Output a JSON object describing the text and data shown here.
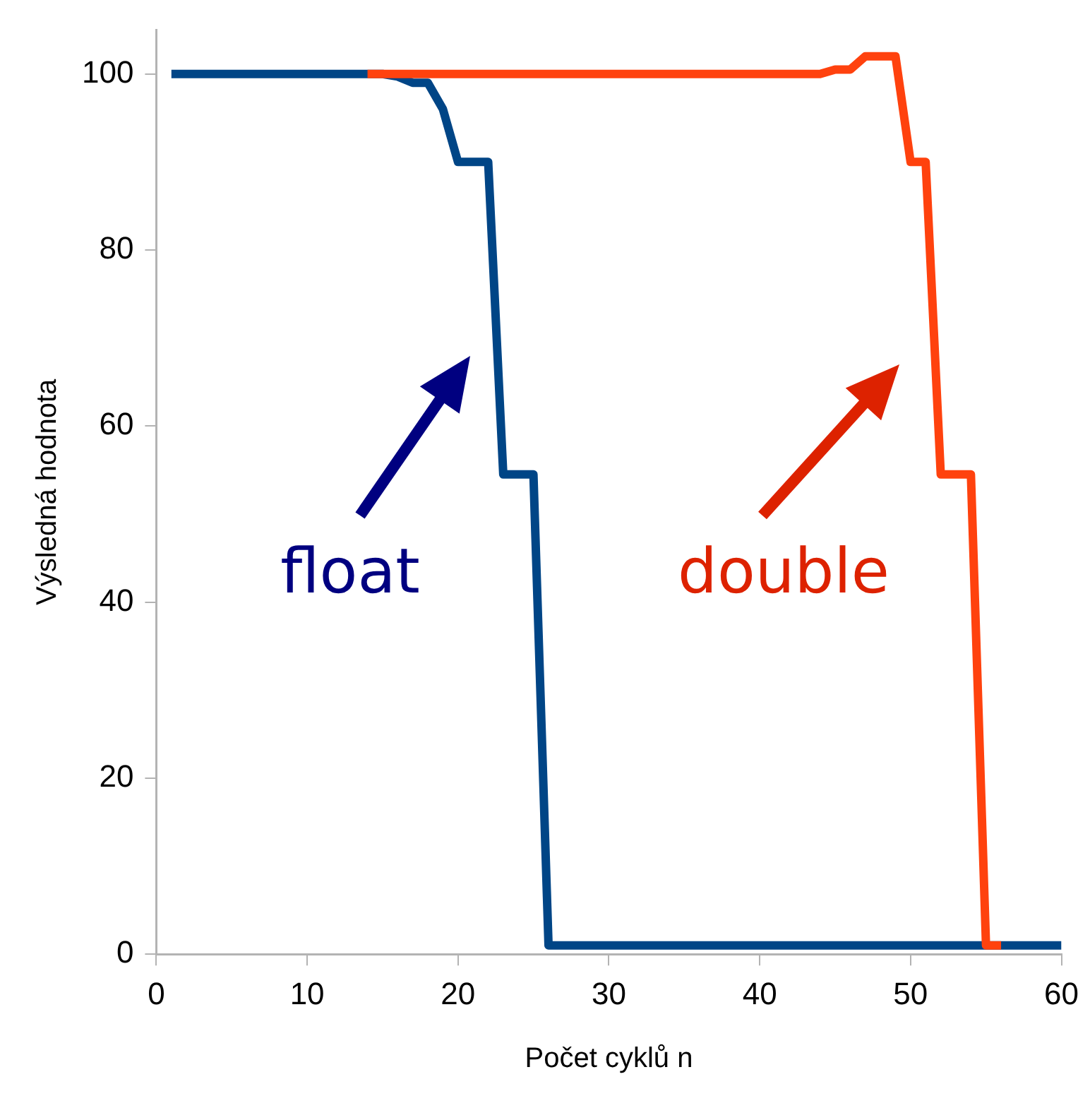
{
  "chart_data": {
    "type": "line",
    "xlabel": "Počet cyklů n",
    "ylabel": "Výsledná hodnota",
    "x": [
      1,
      2,
      3,
      4,
      5,
      6,
      7,
      8,
      9,
      10,
      11,
      12,
      13,
      14,
      15,
      16,
      17,
      18,
      19,
      20,
      21,
      22,
      23,
      24,
      25,
      26,
      27,
      28,
      29,
      30,
      31,
      32,
      33,
      34,
      35,
      36,
      37,
      38,
      39,
      40,
      41,
      42,
      43,
      44,
      45,
      46,
      47,
      48,
      49,
      50,
      51,
      52,
      53,
      54,
      55,
      56,
      57,
      58,
      59,
      60
    ],
    "series": [
      {
        "name": "double",
        "color": "#ff420e",
        "values": [
          null,
          null,
          null,
          null,
          null,
          null,
          null,
          null,
          null,
          null,
          null,
          null,
          null,
          100,
          100,
          100,
          100,
          100,
          100,
          100,
          100,
          100,
          100,
          100,
          100,
          100,
          100,
          100,
          100,
          100,
          100,
          100,
          100,
          100,
          100,
          100,
          100,
          100,
          100,
          100,
          100,
          100,
          100,
          100,
          100.5,
          100.5,
          102,
          102,
          102,
          90,
          90,
          54.5,
          54.5,
          54.5,
          1,
          1,
          null,
          null,
          null,
          null
        ]
      },
      {
        "name": "float",
        "color": "#004586",
        "values": [
          100,
          100,
          100,
          100,
          100,
          100,
          100,
          100,
          100,
          100,
          100,
          100,
          100,
          100,
          100,
          99.7,
          99,
          99,
          96,
          90,
          90,
          90,
          54.5,
          54.5,
          54.5,
          1,
          1,
          1,
          1,
          1,
          1,
          1,
          1,
          1,
          1,
          1,
          1,
          1,
          1,
          1,
          1,
          1,
          1,
          1,
          1,
          1,
          1,
          1,
          1,
          1,
          1,
          1,
          1,
          1,
          1,
          1,
          1,
          1,
          1,
          1
        ]
      }
    ],
    "xlim": [
      0,
      60
    ],
    "xticks": [
      0,
      10,
      20,
      30,
      40,
      50,
      60
    ],
    "ylim": [
      0,
      105
    ],
    "yticks": [
      0,
      20,
      40,
      60,
      80,
      100
    ],
    "grid": false,
    "legend": false,
    "marker": "none",
    "line_style": "solid"
  }
}
